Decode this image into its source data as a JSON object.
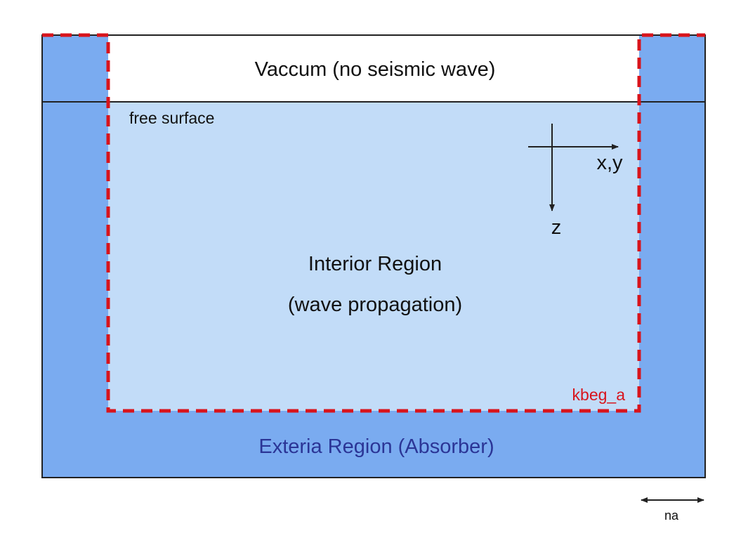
{
  "labels": {
    "vacuum": "Vaccum (no seismic wave)",
    "free_surface": "free surface",
    "interior_title": "Interior Region",
    "interior_subtitle": "(wave propagation)",
    "exterior": "Exteria Region (Absorber)",
    "kbeg": "kbeg_a",
    "na": "na",
    "axis_horizontal": "x,y",
    "axis_vertical": "z"
  },
  "colors": {
    "absorber": "#7AABF0",
    "interior": "#C2DCF8",
    "vacuum": "#FFFFFF",
    "outline": "#222222",
    "boundary_dashed": "#D8141C",
    "exterior_text": "#2B3596",
    "kbeg_text": "#D8141C"
  }
}
